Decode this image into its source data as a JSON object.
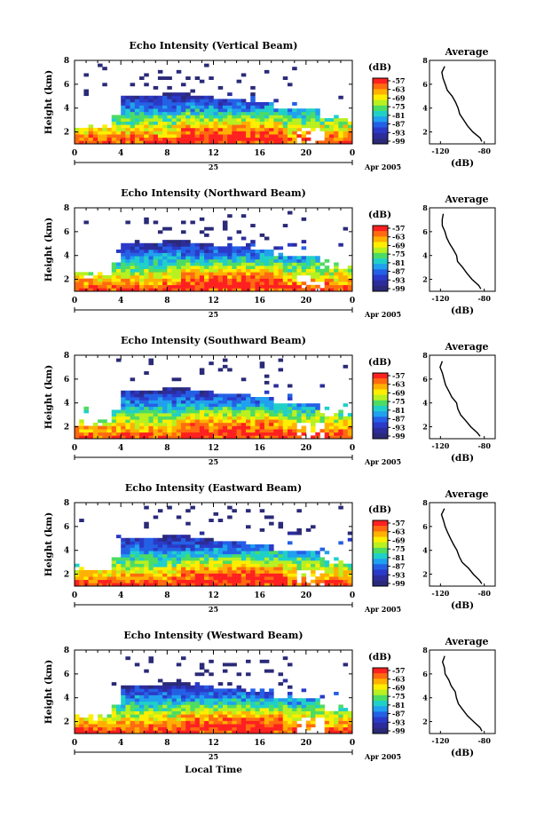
{
  "figure": {
    "xlabel": "Local Time",
    "day_label": "25",
    "date_label": "Apr 2005"
  },
  "colorbar": {
    "unit": "(dB)",
    "ticks": [
      "-57",
      "-63",
      "-69",
      "-75",
      "-81",
      "-87",
      "-93",
      "-99"
    ],
    "colors": [
      "#ff2020",
      "#ff6a10",
      "#ffb000",
      "#ffee00",
      "#b8f020",
      "#4cdc64",
      "#20d0c8",
      "#20a0ee",
      "#2460e6",
      "#2a3ac8",
      "#2c2c9c",
      "#2a2a78"
    ]
  },
  "avg_panel": {
    "title": "Average",
    "xlabel": "(dB)",
    "xticks": [
      "-120",
      "-80"
    ],
    "yticks": [
      "2",
      "4",
      "6",
      "8"
    ]
  },
  "chart_data": [
    {
      "type": "heatmap",
      "title": "Echo Intensity (Vertical Beam)",
      "ylabel": "Height (km)",
      "x_ticks": [
        "0",
        "4",
        "8",
        "12",
        "16",
        "20",
        "0"
      ],
      "y_ticks": [
        "2",
        "4",
        "6",
        "8"
      ],
      "xlim": [
        0,
        24
      ],
      "ylim": [
        1,
        8
      ],
      "value_unit": "dB",
      "value_range": [
        -99,
        -57
      ],
      "profile": {
        "title": "Average",
        "height_km": [
          1.2,
          1.5,
          2.0,
          2.5,
          3.0,
          3.5,
          4.0,
          4.5,
          5.0,
          5.5,
          6.0,
          6.5,
          7.0,
          7.5
        ],
        "mean_db": [
          -82,
          -84,
          -90,
          -95,
          -99,
          -103,
          -104,
          -107,
          -110,
          -113,
          -115,
          -117,
          -118,
          -116
        ]
      }
    },
    {
      "type": "heatmap",
      "title": "Echo Intensity (Northward Beam)",
      "ylabel": "Height (km)",
      "x_ticks": [
        "0",
        "4",
        "8",
        "12",
        "16",
        "20",
        "0"
      ],
      "y_ticks": [
        "2",
        "4",
        "6",
        "8"
      ],
      "xlim": [
        0,
        24
      ],
      "ylim": [
        1,
        8
      ],
      "value_unit": "dB",
      "value_range": [
        -99,
        -57
      ],
      "profile": {
        "title": "Average",
        "height_km": [
          1.2,
          1.5,
          2.0,
          2.5,
          3.0,
          3.5,
          4.0,
          4.5,
          5.0,
          5.5,
          6.0,
          6.5,
          7.0,
          7.5
        ],
        "mean_db": [
          -83,
          -85,
          -91,
          -96,
          -100,
          -104,
          -106,
          -108,
          -111,
          -114,
          -116,
          -118,
          -119,
          -117
        ]
      }
    },
    {
      "type": "heatmap",
      "title": "Echo Intensity (Southward Beam)",
      "ylabel": "Height (km)",
      "x_ticks": [
        "0",
        "4",
        "8",
        "12",
        "16",
        "20",
        "0"
      ],
      "y_ticks": [
        "2",
        "4",
        "6",
        "8"
      ],
      "xlim": [
        0,
        24
      ],
      "ylim": [
        1,
        8
      ],
      "value_unit": "dB",
      "value_range": [
        -99,
        -57
      ],
      "profile": {
        "title": "Average",
        "height_km": [
          1.2,
          1.5,
          2.0,
          2.5,
          3.0,
          3.5,
          4.0,
          4.5,
          5.0,
          5.5,
          6.0,
          6.5,
          7.0,
          7.5
        ],
        "mean_db": [
          -84,
          -86,
          -92,
          -96,
          -101,
          -104,
          -106,
          -109,
          -112,
          -115,
          -117,
          -119,
          -120,
          -118
        ]
      }
    },
    {
      "type": "heatmap",
      "title": "Echo Intensity (Eastward Beam)",
      "ylabel": "Height (km)",
      "x_ticks": [
        "0",
        "4",
        "8",
        "12",
        "16",
        "20",
        "0"
      ],
      "y_ticks": [
        "2",
        "4",
        "6",
        "8"
      ],
      "xlim": [
        0,
        24
      ],
      "ylim": [
        1,
        8
      ],
      "value_unit": "dB",
      "value_range": [
        -99,
        -57
      ],
      "profile": {
        "title": "Average",
        "height_km": [
          1.2,
          1.5,
          2.0,
          2.5,
          3.0,
          3.5,
          4.0,
          4.5,
          5.0,
          5.5,
          6.0,
          6.5,
          7.0,
          7.5
        ],
        "mean_db": [
          -83,
          -85,
          -90,
          -95,
          -100,
          -103,
          -105,
          -108,
          -111,
          -114,
          -116,
          -118,
          -119,
          -117
        ]
      }
    },
    {
      "type": "heatmap",
      "title": "Echo Intensity (Westward Beam)",
      "ylabel": "Height (km)",
      "x_ticks": [
        "0",
        "4",
        "8",
        "12",
        "16",
        "20",
        "0"
      ],
      "y_ticks": [
        "2",
        "4",
        "6",
        "8"
      ],
      "xlim": [
        0,
        24
      ],
      "ylim": [
        1,
        8
      ],
      "value_unit": "dB",
      "value_range": [
        -99,
        -57
      ],
      "profile": {
        "title": "Average",
        "height_km": [
          1.2,
          1.5,
          2.0,
          2.5,
          3.0,
          3.5,
          4.0,
          4.5,
          5.0,
          5.5,
          6.0,
          6.5,
          7.0,
          7.5
        ],
        "mean_db": [
          -82,
          -84,
          -90,
          -95,
          -99,
          -103,
          -105,
          -107,
          -110,
          -113,
          -115,
          -117,
          -118,
          -116
        ]
      }
    }
  ]
}
